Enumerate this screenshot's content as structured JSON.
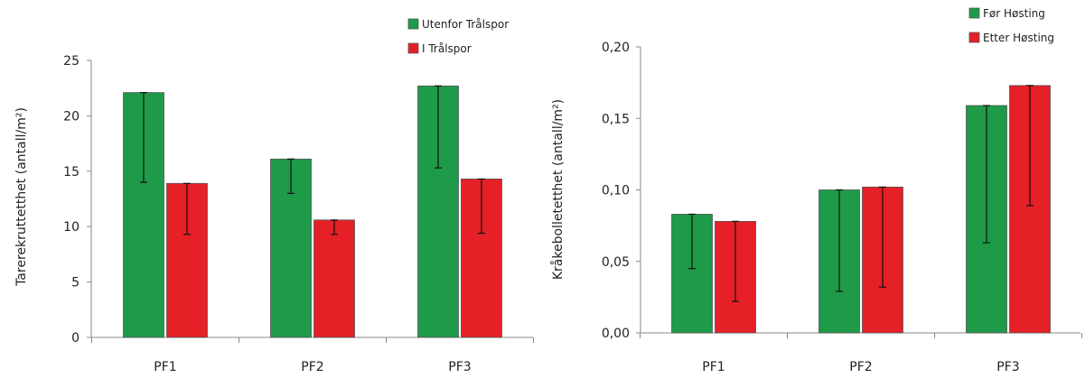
{
  "chart_data": [
    {
      "type": "bar",
      "categories": [
        "PF1",
        "PF2",
        "PF3"
      ],
      "ylabel": "Tarerekruttetthet  (antall/m²)",
      "xlabel": "",
      "ylim": [
        0,
        25
      ],
      "yticks": [
        "0",
        "5",
        "10",
        "15",
        "20",
        "25"
      ],
      "series": [
        {
          "name": "Utenfor Trålspor",
          "color": "#1e9a49",
          "values": [
            22.1,
            16.1,
            22.7
          ],
          "err_low": [
            14.0,
            13.0,
            15.3
          ],
          "err_high": [
            22.1,
            16.1,
            22.7
          ]
        },
        {
          "name": "I Trålspor",
          "color": "#e52027",
          "values": [
            13.9,
            10.6,
            14.3
          ],
          "err_low": [
            9.3,
            9.3,
            9.4
          ],
          "err_high": [
            13.9,
            10.6,
            14.3
          ]
        }
      ],
      "legend": "top-right"
    },
    {
      "type": "bar",
      "categories": [
        "PF1",
        "PF2",
        "PF3"
      ],
      "ylabel": "Kråkebolletetthet  (antall/m²)",
      "xlabel": "",
      "ylim": [
        0,
        0.2
      ],
      "yticks": [
        "0,00",
        "0,05",
        "0,10",
        "0,15",
        "0,20"
      ],
      "series": [
        {
          "name": "Før Høsting",
          "color": "#1e9a49",
          "values": [
            0.083,
            0.1,
            0.159
          ],
          "err_low": [
            0.045,
            0.029,
            0.063
          ],
          "err_high": [
            0.083,
            0.1,
            0.159
          ]
        },
        {
          "name": "Etter Høsting",
          "color": "#e52027",
          "values": [
            0.078,
            0.102,
            0.173
          ],
          "err_low": [
            0.022,
            0.032,
            0.089
          ],
          "err_high": [
            0.078,
            0.102,
            0.173
          ]
        }
      ],
      "legend": "top-right"
    }
  ]
}
